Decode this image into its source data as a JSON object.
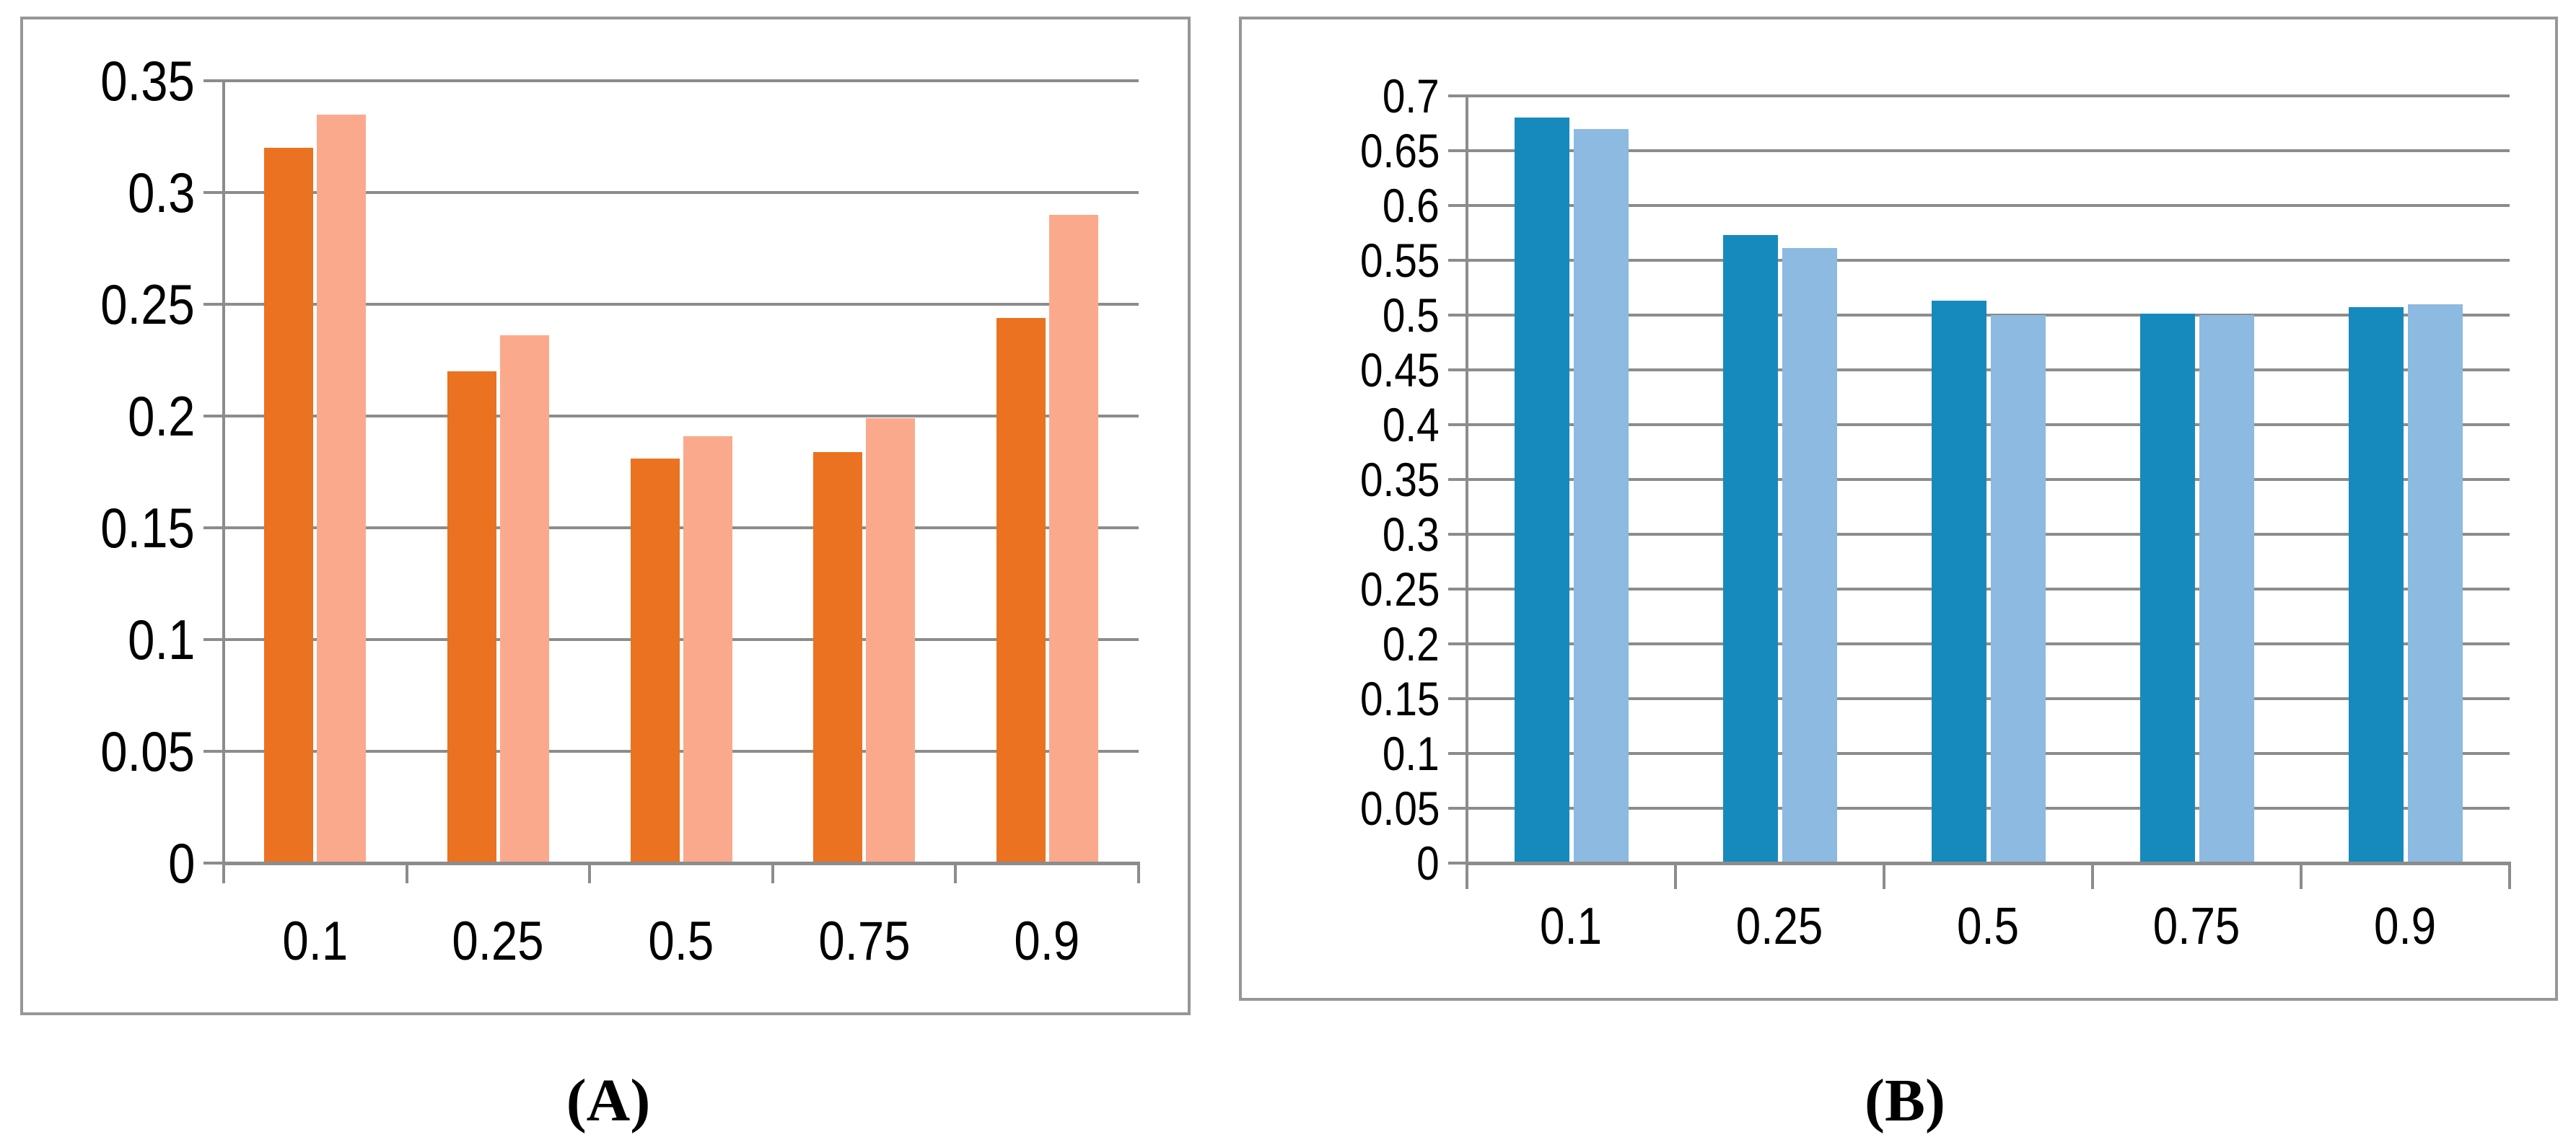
{
  "figure": {
    "panel_a": {
      "caption": "(A)"
    },
    "panel_b": {
      "caption": "(B)"
    }
  },
  "colors": {
    "panel_border": "#979797",
    "gridline": "#8C8C8C",
    "axis": "#8C8C8C",
    "series_a_dark": "#EA7220",
    "series_a_light": "#FBA98C",
    "series_b_dark": "#178ABD",
    "series_b_light": "#8CBAE0",
    "text": "#000000",
    "background": "#FFFFFF"
  },
  "chart_data": [
    {
      "id": "A",
      "type": "bar",
      "title": "",
      "xlabel": "",
      "ylabel": "",
      "categories": [
        "0.1",
        "0.25",
        "0.5",
        "0.75",
        "0.9"
      ],
      "series": [
        {
          "color": "#EA7220",
          "values": [
            0.32,
            0.22,
            0.181,
            0.184,
            0.244
          ]
        },
        {
          "color": "#FBA98C",
          "values": [
            0.335,
            0.236,
            0.191,
            0.199,
            0.29
          ]
        }
      ],
      "ylim": [
        0,
        0.35
      ],
      "ytick_step": 0.05,
      "ytick_labels": [
        "0.35",
        "0.3",
        "0.25",
        "0.2",
        "0.15",
        "0.1",
        "0.05",
        "0"
      ],
      "grid": true,
      "legend": "none"
    },
    {
      "id": "B",
      "type": "bar",
      "title": "",
      "xlabel": "",
      "ylabel": "",
      "categories": [
        "0.1",
        "0.25",
        "0.5",
        "0.75",
        "0.9"
      ],
      "series": [
        {
          "color": "#178ABD",
          "values": [
            0.68,
            0.573,
            0.513,
            0.501,
            0.507
          ]
        },
        {
          "color": "#8CBAE0",
          "values": [
            0.67,
            0.561,
            0.5,
            0.5,
            0.51
          ]
        }
      ],
      "ylim": [
        0,
        0.7
      ],
      "ytick_step": 0.05,
      "ytick_labels": [
        "0.7",
        "0.65",
        "0.6",
        "0.55",
        "0.5",
        "0.45",
        "0.4",
        "0.35",
        "0.3",
        "0.25",
        "0.2",
        "0.15",
        "0.1",
        "0.05",
        "0"
      ],
      "grid": true,
      "legend": "none"
    }
  ]
}
